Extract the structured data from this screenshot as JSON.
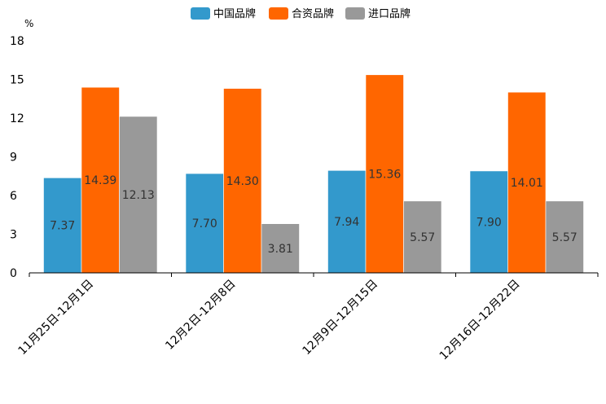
{
  "chart_data": {
    "type": "bar",
    "title": "",
    "xlabel": "",
    "ylabel": "%",
    "ylim": [
      0,
      18
    ],
    "yticks": [
      0,
      3,
      6,
      9,
      12,
      15,
      18
    ],
    "grid": false,
    "legend_position": "top-center",
    "categories": [
      "11月25日-12月1日",
      "12月2日-12月8日",
      "12月9日-12月15日",
      "12月16日-12月22日"
    ],
    "series": [
      {
        "name": "中国品牌",
        "color": "#3399cc",
        "values": [
          7.37,
          7.7,
          7.94,
          7.9
        ],
        "labels": [
          "7.37",
          "7.70",
          "7.94",
          "7.90"
        ]
      },
      {
        "name": "合资品牌",
        "color": "#ff6600",
        "values": [
          14.39,
          14.3,
          15.36,
          14.01
        ],
        "labels": [
          "14.39",
          "14.30",
          "15.36",
          "14.01"
        ]
      },
      {
        "name": "进口品牌",
        "color": "#999999",
        "values": [
          12.13,
          3.81,
          5.57,
          5.57
        ],
        "labels": [
          "12.13",
          "3.81",
          "5.57",
          "5.57"
        ]
      }
    ]
  }
}
